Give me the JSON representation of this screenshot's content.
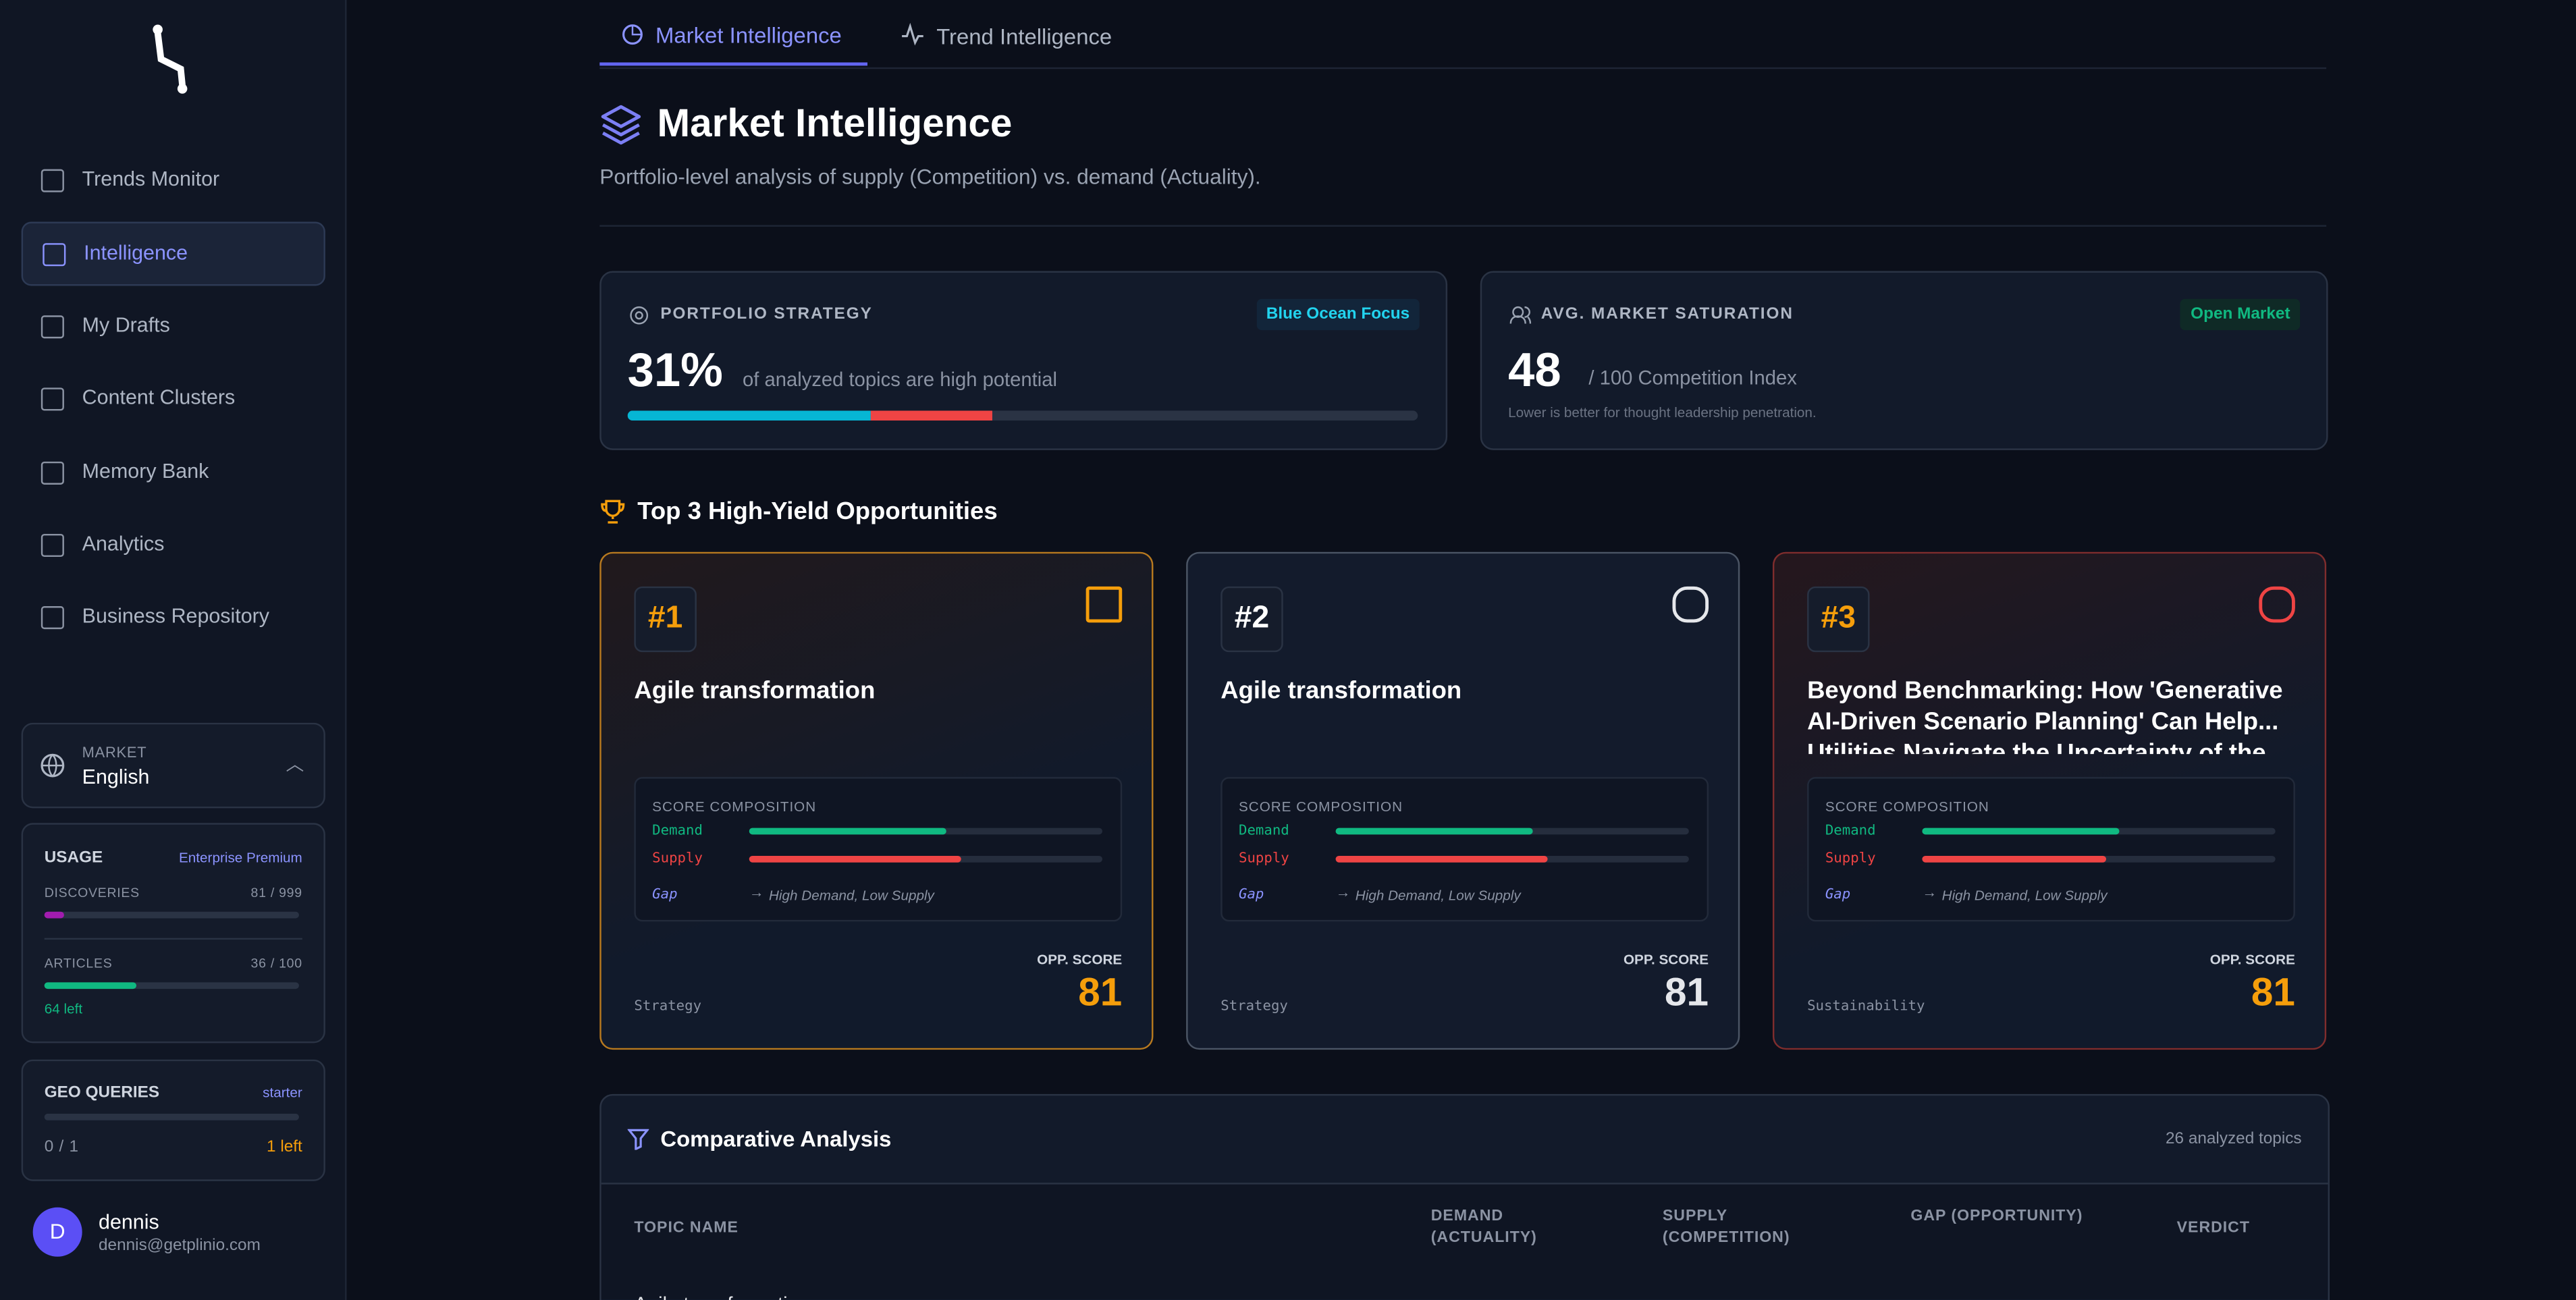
{
  "sidebar": {
    "nav": [
      "Trends Monitor",
      "Intelligence",
      "My Drafts",
      "Content Clusters",
      "Memory Bank",
      "Analytics",
      "Business Repository"
    ],
    "market": {
      "label": "MARKET",
      "value": "English"
    },
    "usage": {
      "title": "USAGE",
      "plan": "Enterprise Premium",
      "discoveries": {
        "label": "DISCOVERIES",
        "value": "81 / 999"
      },
      "articles": {
        "label": "ARTICLES",
        "value": "36 / 100",
        "left": "64 left"
      }
    },
    "geo": {
      "title": "GEO QUERIES",
      "plan": "starter",
      "value": "0 / 1",
      "left": "1 left"
    },
    "user": {
      "initial": "D",
      "name": "dennis",
      "email": "dennis@getplinio.com"
    }
  },
  "tabs": [
    "Market Intelligence",
    "Trend Intelligence"
  ],
  "header": {
    "title": "Market Intelligence",
    "subtitle": "Portfolio-level analysis of supply (Competition) vs. demand (Actuality)."
  },
  "stats": [
    {
      "label": "PORTFOLIO STRATEGY",
      "badge": "Blue Ocean Focus",
      "value": "31%",
      "caption": "of analyzed topics are high potential"
    },
    {
      "label": "AVG. MARKET SATURATION",
      "badge": "Open Market",
      "value": "48",
      "caption": "/ 100 Competition Index",
      "note": "Lower is better for thought leadership penetration."
    }
  ],
  "opportunities": {
    "title": "Top 3 High-Yield Opportunities",
    "cards": [
      {
        "rank": "#1",
        "topic": "Agile transformation",
        "composition": "SCORE COMPOSITION",
        "demand": "Demand",
        "supply": "Supply",
        "gap": "Gap",
        "gap_note": "High Demand, Low Supply",
        "category": "Strategy",
        "score_label": "OPP. SCORE",
        "score": "81"
      },
      {
        "rank": "#2",
        "topic": "Agile transformation",
        "composition": "SCORE COMPOSITION",
        "demand": "Demand",
        "supply": "Supply",
        "gap": "Gap",
        "gap_note": "High Demand, Low Supply",
        "category": "Strategy",
        "score_label": "OPP. SCORE",
        "score": "81"
      },
      {
        "rank": "#3",
        "topic": "Beyond Benchmarking: How 'Generative AI-Driven Scenario Planning' Can Help... Utilities Navigate the Uncertainty of the",
        "composition": "SCORE COMPOSITION",
        "demand": "Demand",
        "supply": "Supply",
        "gap": "Gap",
        "gap_note": "High Demand, Low Supply",
        "category": "Sustainability",
        "score_label": "OPP. SCORE",
        "score": "81"
      }
    ]
  },
  "comparative": {
    "title": "Comparative Analysis",
    "count": "26 analyzed topics",
    "columns": [
      "TOPIC NAME",
      "DEMAND (ACTUALITY)",
      "SUPPLY (COMPETITION)",
      "GAP (OPPORTUNITY)",
      "VERDICT"
    ],
    "rows": [
      [
        "Agile transformation"
      ]
    ]
  }
}
